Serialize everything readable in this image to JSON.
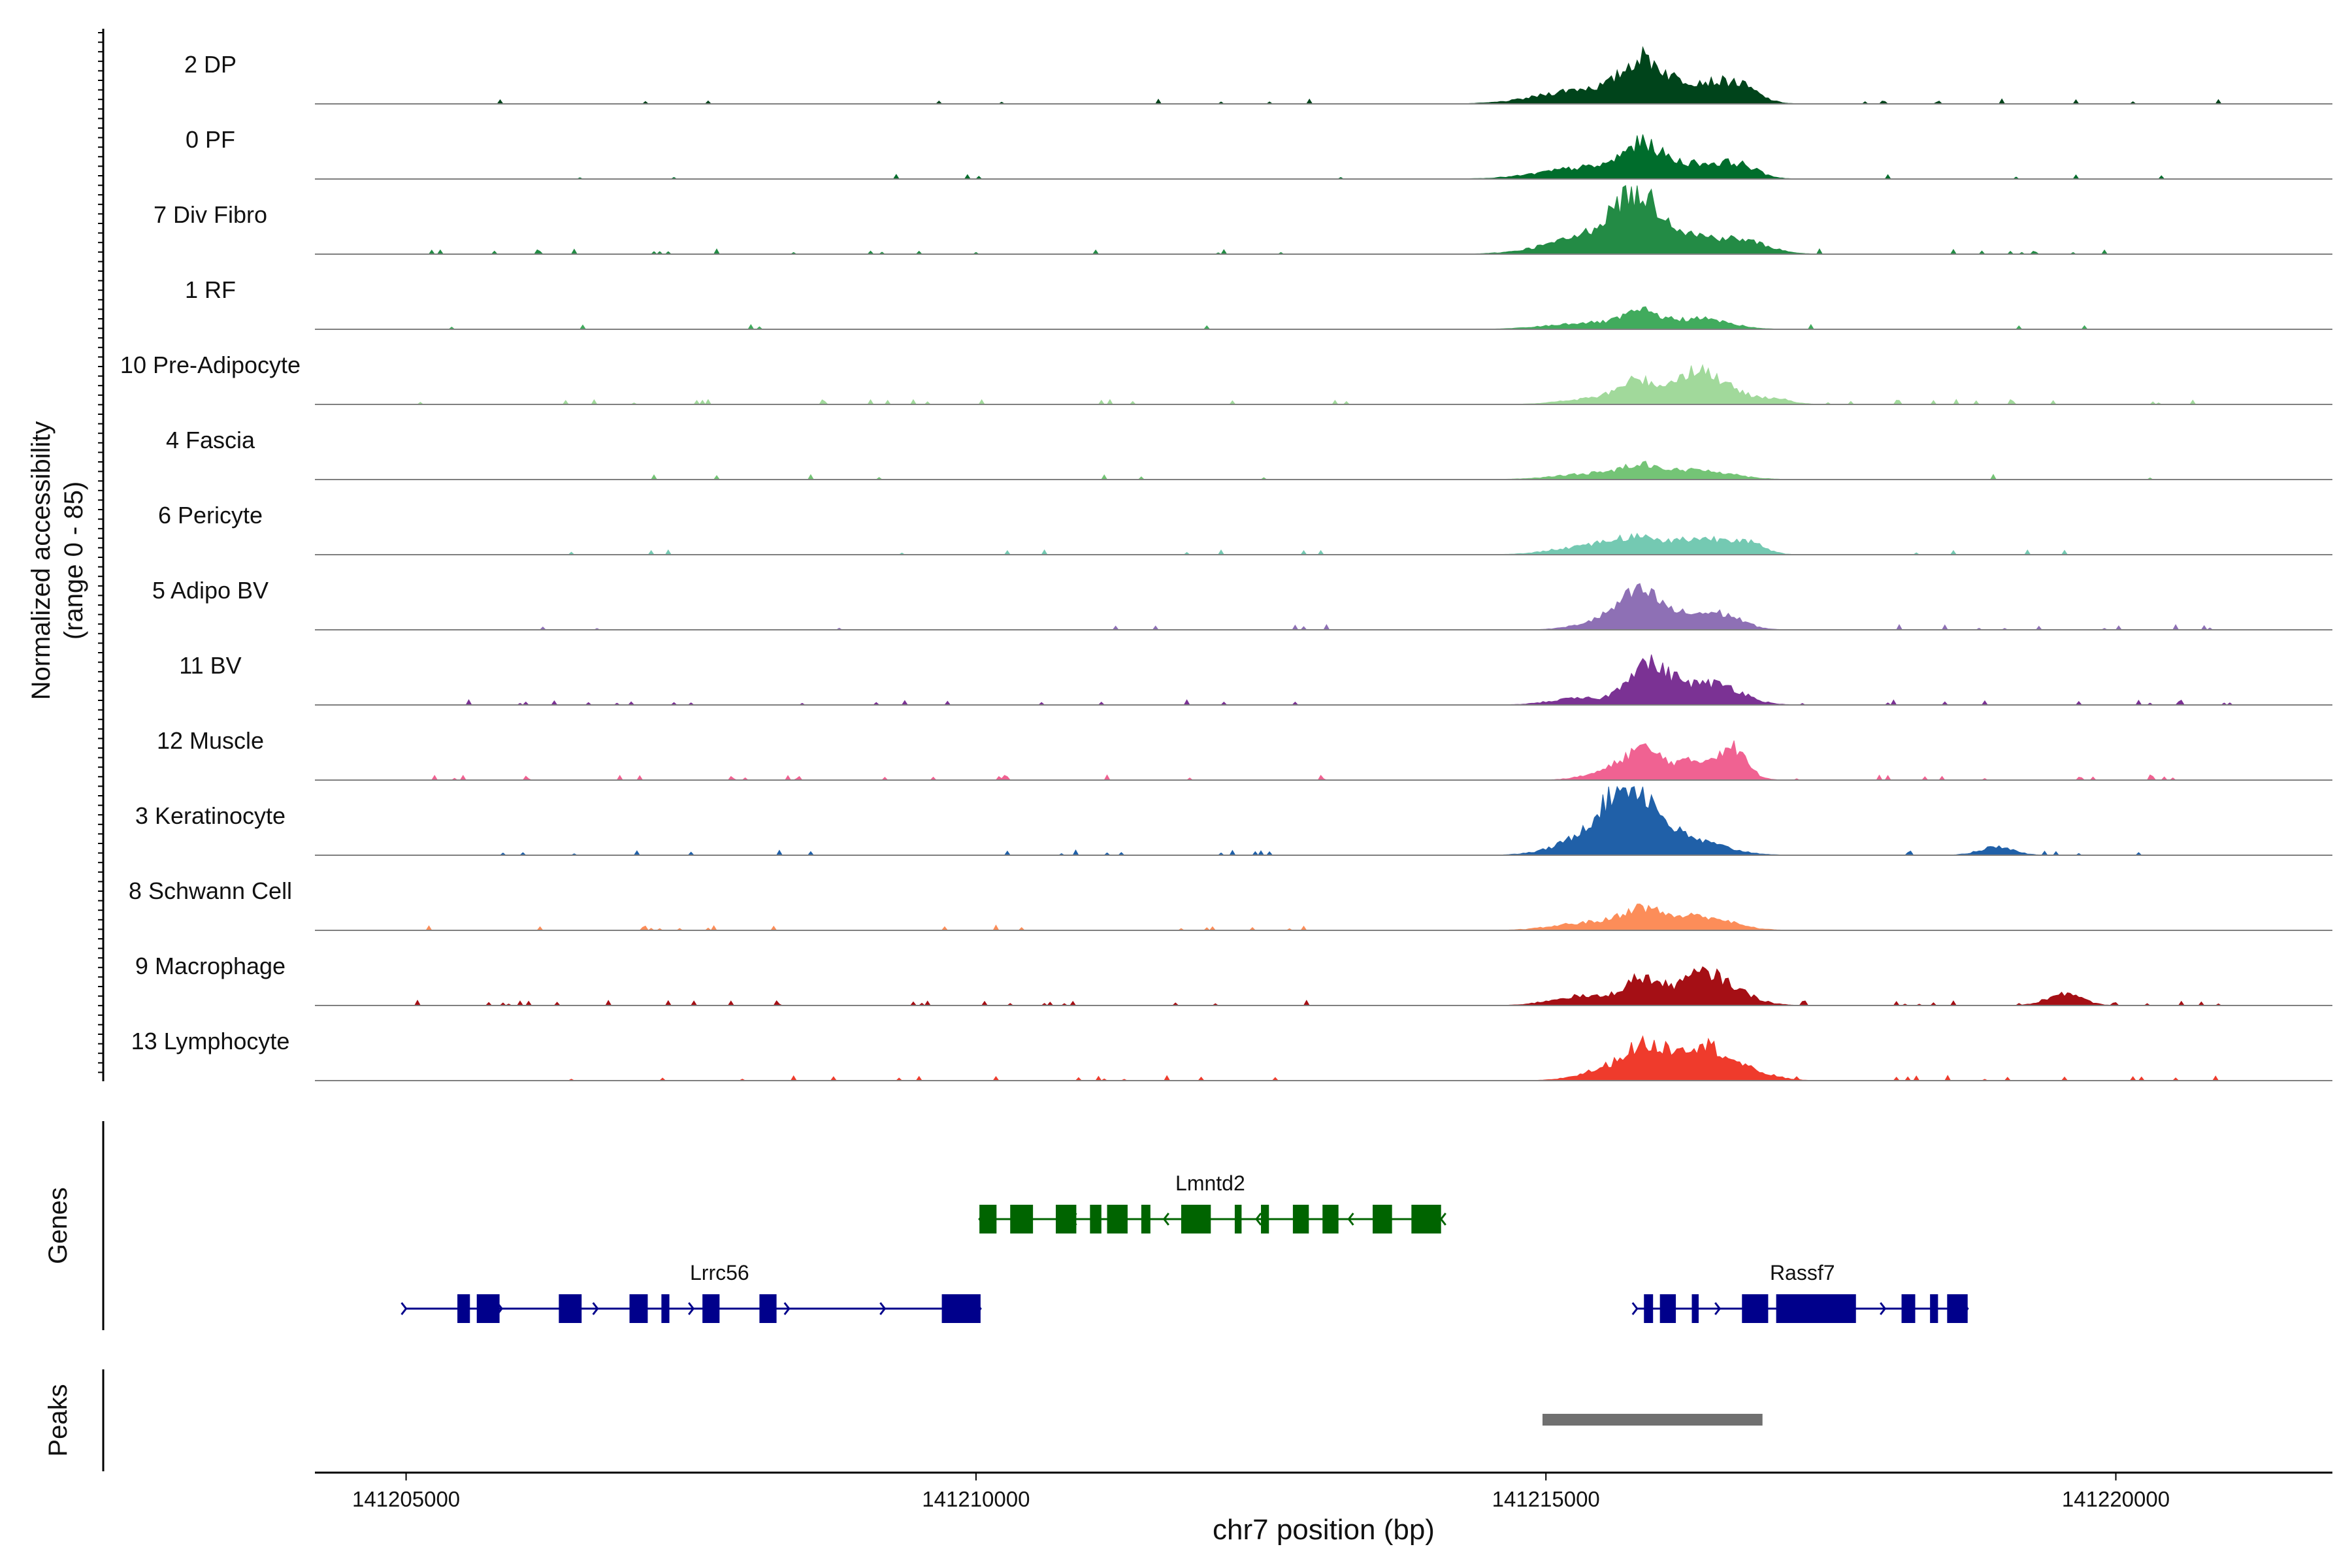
{
  "chart_data": {
    "type": "area",
    "title": "",
    "ylabel_line1": "Normalized accessibility",
    "ylabel_line2": "(range 0 - 85)",
    "y_range": [
      0,
      85
    ],
    "xlabel": "chr7 position (bp)",
    "x_range": [
      141204200,
      141221900
    ],
    "x_ticks": [
      {
        "value": 141205000,
        "label": "141205000"
      },
      {
        "value": 141210000,
        "label": "141210000"
      },
      {
        "value": 141215000,
        "label": "141215000"
      },
      {
        "value": 141220000,
        "label": "141220000"
      }
    ],
    "background_regions": [
      [
        141205100,
        141213300
      ],
      [
        141217200,
        141221000
      ]
    ],
    "tracks": [
      {
        "name": "2 DP",
        "color": "#00441B",
        "noise": 0.03,
        "peaks": [
          [
            141215400,
            400,
            12
          ],
          [
            141215840,
            160,
            25
          ],
          [
            141216300,
            280,
            16
          ],
          [
            141216700,
            160,
            10
          ]
        ]
      },
      {
        "name": "0 PF",
        "color": "#006D2C",
        "noise": 0.03,
        "peaks": [
          [
            141215400,
            400,
            9
          ],
          [
            141215840,
            160,
            20
          ],
          [
            141216300,
            280,
            11
          ],
          [
            141216700,
            160,
            8
          ]
        ]
      },
      {
        "name": "7 Div Fibro",
        "color": "#238B45",
        "noise": 0.05,
        "peaks": [
          [
            141215350,
            350,
            12
          ],
          [
            141215800,
            220,
            40
          ],
          [
            141216350,
            300,
            12
          ],
          [
            141216800,
            200,
            6
          ]
        ]
      },
      {
        "name": "1 RF",
        "color": "#41AB5D",
        "noise": 0.02,
        "peaks": [
          [
            141215400,
            350,
            5
          ],
          [
            141215840,
            150,
            11
          ],
          [
            141216350,
            250,
            8
          ]
        ]
      },
      {
        "name": "10 Pre-Adipocyte",
        "color": "#A1D99B",
        "noise": 0.06,
        "peaks": [
          [
            141215500,
            300,
            5
          ],
          [
            141215800,
            150,
            15
          ],
          [
            141216300,
            200,
            24
          ],
          [
            141216600,
            200,
            7
          ],
          [
            141217000,
            150,
            4
          ]
        ]
      },
      {
        "name": "4 Fascia",
        "color": "#74C476",
        "noise": 0.02,
        "peaks": [
          [
            141215500,
            350,
            5
          ],
          [
            141215840,
            150,
            8
          ],
          [
            141216350,
            280,
            7
          ]
        ]
      },
      {
        "name": "6 Pericyte",
        "color": "#74C9B2",
        "noise": 0.03,
        "peaks": [
          [
            141215400,
            300,
            7
          ],
          [
            141215800,
            200,
            10
          ],
          [
            141216350,
            250,
            12
          ],
          [
            141216750,
            150,
            8
          ]
        ]
      },
      {
        "name": "5 Adipo BV",
        "color": "#8E70B5",
        "noise": 0.03,
        "peaks": [
          [
            141215600,
            250,
            9
          ],
          [
            141215840,
            170,
            22
          ],
          [
            141216300,
            250,
            11
          ],
          [
            141216600,
            160,
            6
          ]
        ]
      },
      {
        "name": "11 BV",
        "color": "#7B3294",
        "noise": 0.07,
        "peaks": [
          [
            141215300,
            250,
            5
          ],
          [
            141215840,
            150,
            28
          ],
          [
            141216100,
            150,
            14
          ],
          [
            141216500,
            220,
            16
          ]
        ]
      },
      {
        "name": "12 Muscle",
        "color": "#F06292",
        "noise": 0.06,
        "peaks": [
          [
            141215600,
            220,
            7
          ],
          [
            141215840,
            150,
            18
          ],
          [
            141216300,
            250,
            14
          ],
          [
            141216640,
            120,
            20
          ]
        ]
      },
      {
        "name": "3 Keratinocyte",
        "color": "#2060A8",
        "noise": 0.03,
        "peaks": [
          [
            141215450,
            300,
            14
          ],
          [
            141215750,
            230,
            45
          ],
          [
            141216300,
            280,
            10
          ],
          [
            141218950,
            150,
            6
          ]
        ]
      },
      {
        "name": "8 Schwann Cell",
        "color": "#FC8D59",
        "noise": 0.04,
        "peaks": [
          [
            141215400,
            300,
            6
          ],
          [
            141215840,
            170,
            14
          ],
          [
            141216350,
            260,
            11
          ]
        ]
      },
      {
        "name": "9 Macrophage",
        "color": "#A50F15",
        "noise": 0.08,
        "peaks": [
          [
            141215300,
            250,
            7
          ],
          [
            141215840,
            160,
            20
          ],
          [
            141216350,
            200,
            22
          ],
          [
            141216650,
            200,
            8
          ],
          [
            141219550,
            150,
            9
          ]
        ]
      },
      {
        "name": "13 Lymphocyte",
        "color": "#EF3B2C",
        "noise": 0.09,
        "peaks": [
          [
            141215600,
            250,
            10
          ],
          [
            141215840,
            150,
            18
          ],
          [
            141216100,
            150,
            12
          ],
          [
            141216400,
            200,
            25
          ],
          [
            141216800,
            200,
            6
          ]
        ]
      }
    ],
    "genes": [
      {
        "name": "Lmntd2",
        "strand": "-",
        "color": "#006400",
        "start": 141210030,
        "end": 141214080,
        "exons": [
          [
            141210030,
            141210180
          ],
          [
            141210300,
            141210500
          ],
          [
            141210700,
            141210880
          ],
          [
            141211000,
            141211100
          ],
          [
            141211150,
            141211330
          ],
          [
            141211450,
            141211530
          ],
          [
            141211800,
            141212060
          ],
          [
            141212270,
            141212330
          ],
          [
            141212500,
            141212570
          ],
          [
            141212780,
            141212920
          ],
          [
            141213040,
            141213180
          ],
          [
            141213480,
            141213650
          ],
          [
            141213820,
            141214080
          ]
        ]
      },
      {
        "name": "Lrrc56",
        "strand": "+",
        "color": "#00008B",
        "start": 141205000,
        "end": 141210040,
        "exons": [
          [
            141205450,
            141205560
          ],
          [
            141205620,
            141205820
          ],
          [
            141206340,
            141206540
          ],
          [
            141206960,
            141207120
          ],
          [
            141207240,
            141207310
          ],
          [
            141207600,
            141207750
          ],
          [
            141208100,
            141208250
          ],
          [
            141209700,
            141210040
          ]
        ]
      },
      {
        "name": "Rassf7",
        "strand": "+",
        "color": "#00008B",
        "start": 141215800,
        "end": 141218700,
        "exons": [
          [
            141215860,
            141215940
          ],
          [
            141216000,
            141216140
          ],
          [
            141216280,
            141216340
          ],
          [
            141216720,
            141216950
          ],
          [
            141217020,
            141217720
          ],
          [
            141218120,
            141218240
          ],
          [
            141218370,
            141218440
          ],
          [
            141218520,
            141218700
          ]
        ]
      }
    ],
    "peaks": [
      {
        "start": 141214970,
        "end": 141216900,
        "color": "#707070"
      }
    ],
    "panels": {
      "genes_label": "Genes",
      "peaks_label": "Peaks"
    }
  }
}
